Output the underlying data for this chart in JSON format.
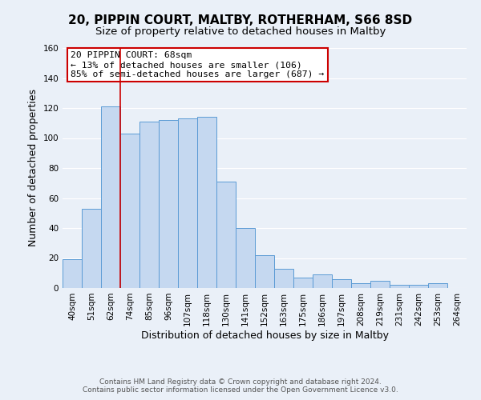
{
  "title": "20, PIPPIN COURT, MALTBY, ROTHERHAM, S66 8SD",
  "subtitle": "Size of property relative to detached houses in Maltby",
  "xlabel": "Distribution of detached houses by size in Maltby",
  "ylabel": "Number of detached properties",
  "bar_labels": [
    "40sqm",
    "51sqm",
    "62sqm",
    "74sqm",
    "85sqm",
    "96sqm",
    "107sqm",
    "118sqm",
    "130sqm",
    "141sqm",
    "152sqm",
    "163sqm",
    "175sqm",
    "186sqm",
    "197sqm",
    "208sqm",
    "219sqm",
    "231sqm",
    "242sqm",
    "253sqm",
    "264sqm"
  ],
  "bar_values": [
    19,
    53,
    121,
    103,
    111,
    112,
    113,
    114,
    71,
    40,
    22,
    13,
    7,
    9,
    6,
    3,
    5,
    2,
    2,
    3,
    0
  ],
  "bar_color": "#c5d8f0",
  "bar_edge_color": "#5b9bd5",
  "ylim": [
    0,
    160
  ],
  "yticks": [
    0,
    20,
    40,
    60,
    80,
    100,
    120,
    140,
    160
  ],
  "vertical_line_color": "#cc0000",
  "annotation_title": "20 PIPPIN COURT: 68sqm",
  "annotation_line1": "← 13% of detached houses are smaller (106)",
  "annotation_line2": "85% of semi-detached houses are larger (687) →",
  "annotation_box_color": "#ffffff",
  "annotation_box_edge": "#cc0000",
  "footer1": "Contains HM Land Registry data © Crown copyright and database right 2024.",
  "footer2": "Contains public sector information licensed under the Open Government Licence v3.0.",
  "background_color": "#eaf0f8",
  "plot_background": "#eaf0f8",
  "grid_color": "#ffffff",
  "title_fontsize": 11,
  "subtitle_fontsize": 9.5,
  "ylabel_fontsize": 9,
  "xlabel_fontsize": 9,
  "tick_fontsize": 7.5,
  "footer_fontsize": 6.5,
  "ann_fontsize": 8.2
}
